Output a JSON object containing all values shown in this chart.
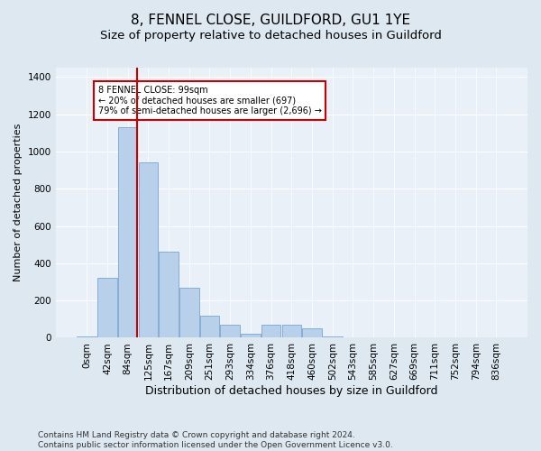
{
  "title1": "8, FENNEL CLOSE, GUILDFORD, GU1 1YE",
  "title2": "Size of property relative to detached houses in Guildford",
  "xlabel": "Distribution of detached houses by size in Guildford",
  "ylabel": "Number of detached properties",
  "footnote": "Contains HM Land Registry data © Crown copyright and database right 2024.\nContains public sector information licensed under the Open Government Licence v3.0.",
  "bar_labels": [
    "0sqm",
    "42sqm",
    "84sqm",
    "125sqm",
    "167sqm",
    "209sqm",
    "251sqm",
    "293sqm",
    "334sqm",
    "376sqm",
    "418sqm",
    "460sqm",
    "502sqm",
    "543sqm",
    "585sqm",
    "627sqm",
    "669sqm",
    "711sqm",
    "752sqm",
    "794sqm",
    "836sqm"
  ],
  "bar_heights": [
    5,
    320,
    1130,
    940,
    460,
    270,
    120,
    68,
    20,
    68,
    68,
    50,
    8,
    0,
    0,
    0,
    4,
    0,
    0,
    0,
    0
  ],
  "bar_color": "#b8d0ea",
  "bar_edge_color": "#6699cc",
  "vline_color": "#cc0000",
  "annotation_text": "8 FENNEL CLOSE: 99sqm\n← 20% of detached houses are smaller (697)\n79% of semi-detached houses are larger (2,696) →",
  "annotation_box_color": "#cc0000",
  "ylim": [
    0,
    1450
  ],
  "yticks": [
    0,
    200,
    400,
    600,
    800,
    1000,
    1200,
    1400
  ],
  "background_color": "#dde8f0",
  "plot_bg_color": "#eaf0f8",
  "grid_color": "#ffffff",
  "title1_fontsize": 11,
  "title2_fontsize": 9.5,
  "xlabel_fontsize": 9,
  "ylabel_fontsize": 8,
  "tick_fontsize": 7.5,
  "footnote_fontsize": 6.5
}
